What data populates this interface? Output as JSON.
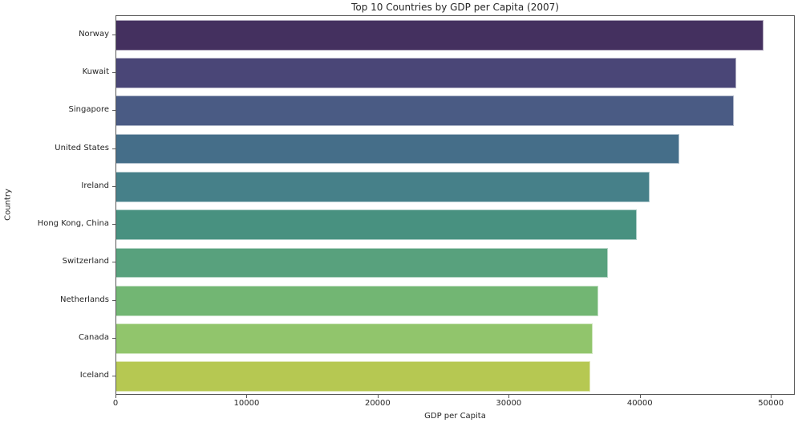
{
  "chart_data": {
    "type": "bar",
    "orientation": "horizontal",
    "title": "Top 10 Countries by GDP per Capita (2007)",
    "xlabel": "GDP per Capita",
    "ylabel": "Country",
    "categories": [
      "Norway",
      "Kuwait",
      "Singapore",
      "United States",
      "Ireland",
      "Hong Kong, China",
      "Switzerland",
      "Netherlands",
      "Canada",
      "Iceland"
    ],
    "values": [
      49357,
      47307,
      47143,
      42952,
      40676,
      39725,
      37506,
      36798,
      36319,
      36181
    ],
    "bar_colors": [
      "#44305f",
      "#4a4677",
      "#4a5b84",
      "#456e89",
      "#468089",
      "#489180",
      "#58a17d",
      "#72b673",
      "#91c56c",
      "#b6c852"
    ],
    "xlim": [
      0,
      51825
    ],
    "xticks": [
      0,
      10000,
      20000,
      30000,
      40000,
      50000
    ],
    "xtick_labels": [
      "0",
      "10000",
      "20000",
      "30000",
      "40000",
      "50000"
    ],
    "grid": false,
    "legend": null
  },
  "colors": {
    "background": "#ffffff",
    "text": "#262626",
    "spine": "#595959"
  }
}
